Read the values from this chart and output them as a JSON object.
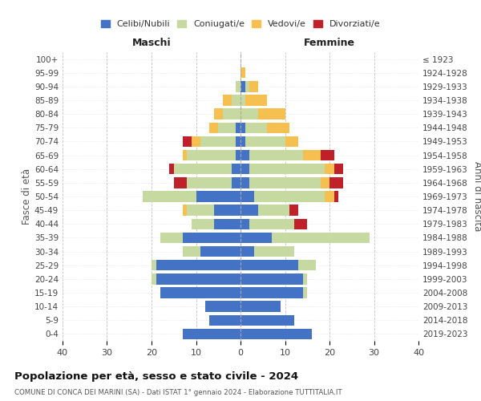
{
  "age_groups": [
    "0-4",
    "5-9",
    "10-14",
    "15-19",
    "20-24",
    "25-29",
    "30-34",
    "35-39",
    "40-44",
    "45-49",
    "50-54",
    "55-59",
    "60-64",
    "65-69",
    "70-74",
    "75-79",
    "80-84",
    "85-89",
    "90-94",
    "95-99",
    "100+"
  ],
  "birth_years": [
    "2019-2023",
    "2014-2018",
    "2009-2013",
    "2004-2008",
    "1999-2003",
    "1994-1998",
    "1989-1993",
    "1984-1988",
    "1979-1983",
    "1974-1978",
    "1969-1973",
    "1964-1968",
    "1959-1963",
    "1954-1958",
    "1949-1953",
    "1944-1948",
    "1939-1943",
    "1934-1938",
    "1929-1933",
    "1924-1928",
    "≤ 1923"
  ],
  "maschi": {
    "celibi": [
      13,
      7,
      8,
      18,
      19,
      19,
      9,
      13,
      6,
      6,
      10,
      2,
      2,
      1,
      1,
      1,
      0,
      0,
      0,
      0,
      0
    ],
    "coniugati": [
      0,
      0,
      0,
      0,
      1,
      1,
      4,
      5,
      5,
      6,
      12,
      10,
      13,
      11,
      8,
      4,
      4,
      2,
      1,
      0,
      0
    ],
    "vedovi": [
      0,
      0,
      0,
      0,
      0,
      0,
      0,
      0,
      0,
      1,
      0,
      0,
      0,
      1,
      2,
      2,
      2,
      2,
      0,
      0,
      0
    ],
    "divorziati": [
      0,
      0,
      0,
      0,
      0,
      0,
      0,
      0,
      0,
      0,
      0,
      3,
      1,
      0,
      2,
      0,
      0,
      0,
      0,
      0,
      0
    ]
  },
  "femmine": {
    "nubili": [
      16,
      12,
      9,
      14,
      14,
      13,
      3,
      7,
      2,
      4,
      3,
      2,
      2,
      2,
      1,
      1,
      0,
      0,
      1,
      0,
      0
    ],
    "coniugate": [
      0,
      0,
      0,
      1,
      1,
      4,
      9,
      22,
      10,
      7,
      16,
      16,
      17,
      12,
      9,
      5,
      4,
      1,
      1,
      0,
      0
    ],
    "vedove": [
      0,
      0,
      0,
      0,
      0,
      0,
      0,
      0,
      0,
      0,
      2,
      2,
      2,
      4,
      3,
      5,
      6,
      5,
      2,
      1,
      0
    ],
    "divorziate": [
      0,
      0,
      0,
      0,
      0,
      0,
      0,
      0,
      3,
      2,
      1,
      3,
      2,
      3,
      0,
      0,
      0,
      0,
      0,
      0,
      0
    ]
  },
  "colors": {
    "celibi": "#4472c4",
    "coniugati": "#c5d9a0",
    "vedovi": "#f5c050",
    "divorziati": "#c0202a"
  },
  "xlim": 40,
  "title": "Popolazione per età, sesso e stato civile - 2024",
  "subtitle": "COMUNE DI CONCA DEI MARINI (SA) - Dati ISTAT 1° gennaio 2024 - Elaborazione TUTTITALIA.IT",
  "ylabel_left": "Fasce di età",
  "ylabel_right": "Anni di nascita",
  "maschi_label": "Maschi",
  "femmine_label": "Femmine",
  "legend_labels": [
    "Celibi/Nubili",
    "Coniugati/e",
    "Vedovi/e",
    "Divorziati/e"
  ],
  "bg_color": "#ffffff",
  "grid_color": "#cccccc"
}
